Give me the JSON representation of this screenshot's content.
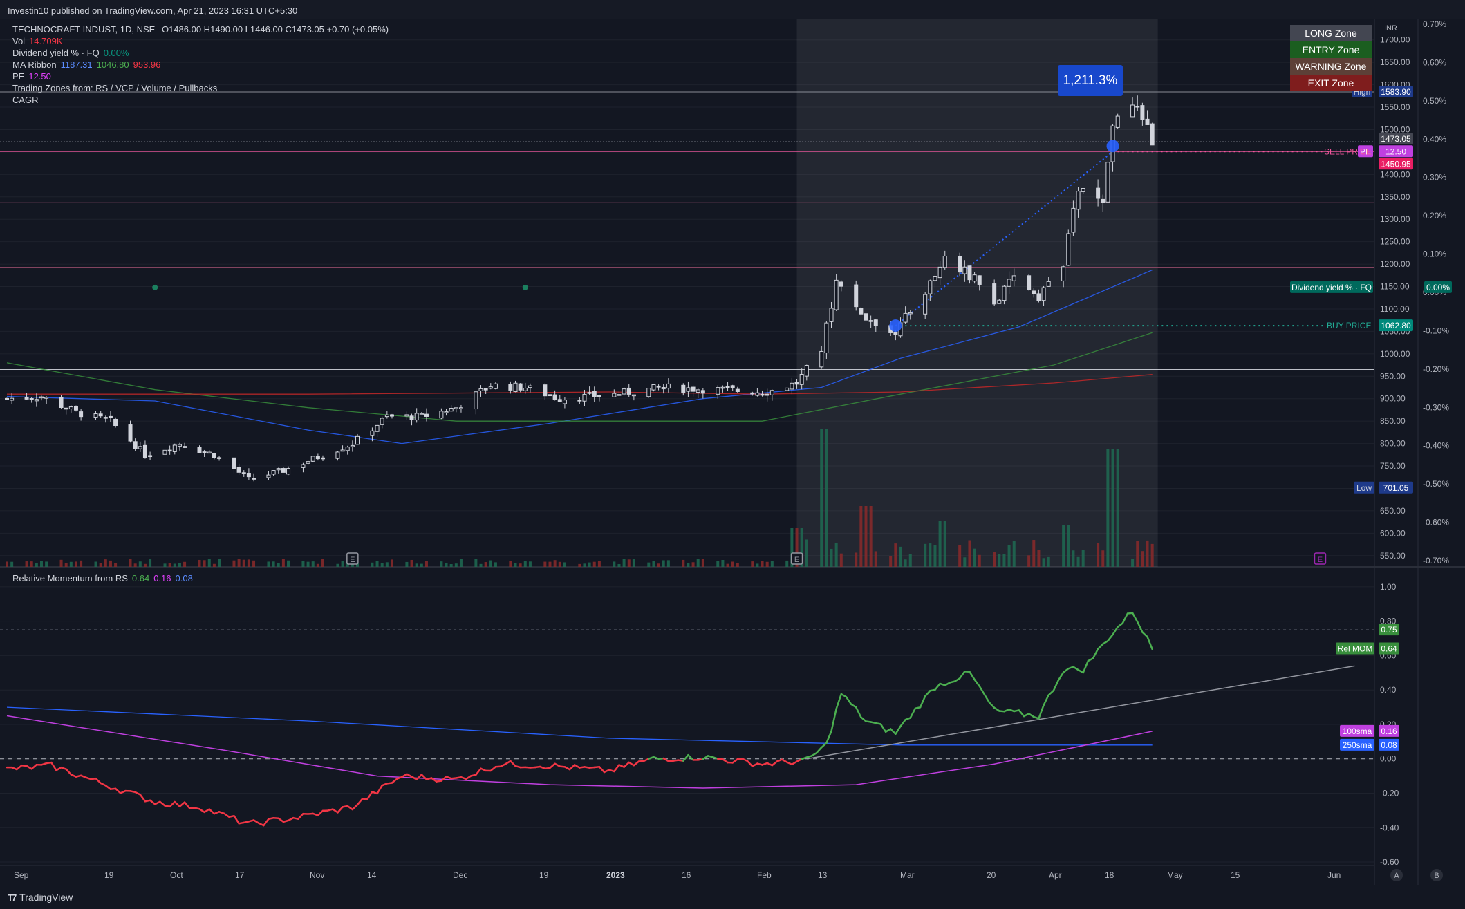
{
  "header": {
    "published": "Investin10 published on TradingView.com, Apr 21, 2023 16:31 UTC+5:30"
  },
  "footer": {
    "brand": "TradingView",
    "brand_icon": "tradingview-logo-icon"
  },
  "legend": {
    "title": "TECHNOCRAFT INDUST, 1D, NSE",
    "ohlc": "O1486.00  H1490.00  L1446.00  C1473.05  +0.70 (+0.05%)",
    "vol_label": "Vol",
    "vol_value": "14.709K",
    "div_label": "Dividend yield % · FQ",
    "div_value": "0.00%",
    "ma_label": "MA Ribbon",
    "ma1": "1187.31",
    "ma2": "1046.80",
    "ma3": "953.96",
    "pe_label": "PE",
    "pe_value": "12.50",
    "zones_label": "Trading Zones from: RS / VCP / Volume / Pullbacks",
    "cagr_label": "CAGR"
  },
  "zones": [
    {
      "label": "LONG Zone",
      "color": "#434651"
    },
    {
      "label": "ENTRY Zone",
      "color": "#1b5e20"
    },
    {
      "label": "WARNING Zone",
      "color": "#5d4037"
    },
    {
      "label": "EXIT Zone",
      "color": "#7f1d1d"
    }
  ],
  "gain_label": "1,211.3%",
  "price_axis": {
    "unit": "INR",
    "ticks": [
      "1700.00",
      "1650.00",
      "1600.00",
      "1550.00",
      "1500.00",
      "1450.00",
      "1400.00",
      "1350.00",
      "1300.00",
      "1250.00",
      "1200.00",
      "1150.00",
      "1100.00",
      "1050.00",
      "1000.00",
      "950.00",
      "900.00",
      "850.00",
      "800.00",
      "750.00",
      "700.00",
      "650.00",
      "600.00",
      "550.00"
    ],
    "tick_values": [
      1700,
      1650,
      1600,
      1550,
      1500,
      1450,
      1400,
      1350,
      1300,
      1250,
      1200,
      1150,
      1100,
      1050,
      1000,
      950,
      900,
      850,
      800,
      750,
      700,
      650,
      600,
      550
    ]
  },
  "pct_axis": {
    "ticks": [
      "0.70%",
      "0.60%",
      "0.50%",
      "0.40%",
      "0.30%",
      "0.20%",
      "0.10%",
      "0.00%",
      "-0.10%",
      "-0.20%",
      "-0.30%",
      "-0.40%",
      "-0.50%",
      "-0.60%",
      "-0.70%"
    ],
    "tick_values": [
      0.7,
      0.6,
      0.5,
      0.4,
      0.3,
      0.2,
      0.1,
      0,
      -0.1,
      -0.2,
      -0.3,
      -0.4,
      -0.5,
      -0.6,
      -0.7
    ]
  },
  "mom_axis": {
    "ticks": [
      "1.00",
      "0.80",
      "0.60",
      "0.40",
      "0.20",
      "0.00",
      "-0.20",
      "-0.40",
      "-0.60"
    ],
    "tick_values": [
      1.0,
      0.8,
      0.6,
      0.4,
      0.2,
      0,
      -0.2,
      -0.4,
      -0.6
    ]
  },
  "time_axis": {
    "labels": [
      "Sep",
      "19",
      "Oct",
      "17",
      "Nov",
      "14",
      "Dec",
      "19",
      "2023",
      "16",
      "Feb",
      "13",
      "Mar",
      "20",
      "Apr",
      "18",
      "May",
      "15",
      "Jun"
    ],
    "bold": [
      false,
      false,
      false,
      false,
      false,
      false,
      false,
      false,
      true,
      false,
      false,
      false,
      false,
      false,
      false,
      false,
      false,
      false,
      false
    ]
  },
  "bottom_buttons": [
    "A",
    "B"
  ],
  "price_labels": {
    "high_label": "High",
    "high_value": "1583.90",
    "last": "1473.05",
    "pe_tag": "PE",
    "pe_value": "12.50",
    "sell_label": "SELL PRICE",
    "sell_value": "1450.95",
    "buy_label": "BUY PRICE",
    "buy_value": "1062.80",
    "low_label": "Low",
    "low_value": "701.05",
    "div_label": "Dividend yield % · FQ",
    "div_value": "0.00%"
  },
  "momentum": {
    "title": "Relative Momentum from RS",
    "v1": "0.64",
    "v2": "0.16",
    "v3": "0.08",
    "relmom_label": "Rel MOM",
    "relmom_value": "0.64",
    "level_value": "0.75",
    "sma100_label": "100sma",
    "sma100_value": "0.16",
    "sma250_label": "250sma",
    "sma250_value": "0.08"
  },
  "chart_data": {
    "type": "line",
    "description_series": "Approximate daily close, Sep 2022 – Apr 2023",
    "x_range": [
      "2022-09-01",
      "2023-06-05"
    ],
    "price_ylim": [
      525,
      1735
    ],
    "price_close_keyframes": [
      {
        "d": "2022-09-01",
        "v": 900
      },
      {
        "d": "2022-09-08",
        "v": 905
      },
      {
        "d": "2022-09-15",
        "v": 870
      },
      {
        "d": "2022-09-22",
        "v": 850
      },
      {
        "d": "2022-09-29",
        "v": 775
      },
      {
        "d": "2022-10-06",
        "v": 800
      },
      {
        "d": "2022-10-13",
        "v": 775
      },
      {
        "d": "2022-10-20",
        "v": 720
      },
      {
        "d": "2022-10-27",
        "v": 740
      },
      {
        "d": "2022-11-03",
        "v": 770
      },
      {
        "d": "2022-11-10",
        "v": 800
      },
      {
        "d": "2022-11-17",
        "v": 860
      },
      {
        "d": "2022-11-24",
        "v": 860
      },
      {
        "d": "2022-12-01",
        "v": 880
      },
      {
        "d": "2022-12-08",
        "v": 930
      },
      {
        "d": "2022-12-15",
        "v": 925
      },
      {
        "d": "2022-12-22",
        "v": 900
      },
      {
        "d": "2023-01-02",
        "v": 910
      },
      {
        "d": "2023-01-12",
        "v": 925
      },
      {
        "d": "2023-01-23",
        "v": 920
      },
      {
        "d": "2023-02-02",
        "v": 915
      },
      {
        "d": "2023-02-08",
        "v": 935
      },
      {
        "d": "2023-02-13",
        "v": 1010
      },
      {
        "d": "2023-02-16",
        "v": 1160
      },
      {
        "d": "2023-02-22",
        "v": 1080
      },
      {
        "d": "2023-02-28",
        "v": 1050
      },
      {
        "d": "2023-03-06",
        "v": 1140
      },
      {
        "d": "2023-03-10",
        "v": 1210
      },
      {
        "d": "2023-03-16",
        "v": 1170
      },
      {
        "d": "2023-03-20",
        "v": 1110
      },
      {
        "d": "2023-03-24",
        "v": 1170
      },
      {
        "d": "2023-03-29",
        "v": 1130
      },
      {
        "d": "2023-04-03",
        "v": 1200
      },
      {
        "d": "2023-04-06",
        "v": 1370
      },
      {
        "d": "2023-04-11",
        "v": 1330
      },
      {
        "d": "2023-04-13",
        "v": 1500
      },
      {
        "d": "2023-04-17",
        "v": 1570
      },
      {
        "d": "2023-04-21",
        "v": 1473
      }
    ],
    "ma_ribbon": [
      {
        "name": "MA Ribbon 1187.31",
        "color": "#2962ff",
        "pts": [
          {
            "d": "2022-09-01",
            "v": 905
          },
          {
            "d": "2022-10-01",
            "v": 895
          },
          {
            "d": "2022-11-01",
            "v": 830
          },
          {
            "d": "2022-11-20",
            "v": 800
          },
          {
            "d": "2022-12-20",
            "v": 845
          },
          {
            "d": "2023-01-20",
            "v": 900
          },
          {
            "d": "2023-02-13",
            "v": 925
          },
          {
            "d": "2023-03-01",
            "v": 990
          },
          {
            "d": "2023-03-25",
            "v": 1060
          },
          {
            "d": "2023-04-21",
            "v": 1187
          }
        ]
      },
      {
        "name": "MA Ribbon 1046.80",
        "color": "#388e3c",
        "pts": [
          {
            "d": "2022-09-01",
            "v": 980
          },
          {
            "d": "2022-10-01",
            "v": 920
          },
          {
            "d": "2022-11-01",
            "v": 880
          },
          {
            "d": "2022-12-01",
            "v": 850
          },
          {
            "d": "2023-01-01",
            "v": 850
          },
          {
            "d": "2023-02-01",
            "v": 850
          },
          {
            "d": "2023-03-01",
            "v": 910
          },
          {
            "d": "2023-04-01",
            "v": 975
          },
          {
            "d": "2023-04-21",
            "v": 1047
          }
        ]
      },
      {
        "name": "MA Ribbon 953.96",
        "color": "#c62828",
        "pts": [
          {
            "d": "2022-09-01",
            "v": 910
          },
          {
            "d": "2022-11-01",
            "v": 910
          },
          {
            "d": "2023-01-01",
            "v": 915
          },
          {
            "d": "2023-02-01",
            "v": 910
          },
          {
            "d": "2023-03-01",
            "v": 915
          },
          {
            "d": "2023-04-01",
            "v": 935
          },
          {
            "d": "2023-04-21",
            "v": 954
          }
        ]
      }
    ],
    "price_levels": [
      1583.9,
      1473.05,
      1450.95,
      1337,
      1193,
      965,
      1062.8
    ],
    "buy": {
      "d": "2023-02-28",
      "v": 1062.8
    },
    "sell": {
      "d": "2023-04-13",
      "v": 1450.95
    },
    "highlight_range": [
      "2023-02-08",
      "2023-04-21"
    ],
    "dividend_dots": [
      {
        "d": "2022-10-01",
        "v": 1148
      },
      {
        "d": "2022-12-15",
        "v": 1148
      }
    ],
    "earnings_markers": [
      "2022-11-10",
      "2023-02-08",
      "2023-05-25"
    ],
    "volume_spikes": [
      {
        "d": "2023-02-08",
        "v": 0.28
      },
      {
        "d": "2023-02-13",
        "v": 1.0
      },
      {
        "d": "2023-02-22",
        "v": 0.44
      },
      {
        "d": "2023-03-10",
        "v": 0.33
      },
      {
        "d": "2023-04-03",
        "v": 0.3
      },
      {
        "d": "2023-04-13",
        "v": 0.85
      }
    ],
    "momentum_ylim": [
      -0.62,
      1.08
    ],
    "rel_mom": [
      {
        "d": "2022-09-01",
        "v": -0.06
      },
      {
        "d": "2022-09-10",
        "v": -0.04
      },
      {
        "d": "2022-09-20",
        "v": -0.14
      },
      {
        "d": "2022-10-01",
        "v": -0.25
      },
      {
        "d": "2022-10-10",
        "v": -0.28
      },
      {
        "d": "2022-10-20",
        "v": -0.38
      },
      {
        "d": "2022-10-30",
        "v": -0.34
      },
      {
        "d": "2022-11-10",
        "v": -0.28
      },
      {
        "d": "2022-11-20",
        "v": -0.1
      },
      {
        "d": "2022-12-01",
        "v": -0.12
      },
      {
        "d": "2022-12-10",
        "v": -0.03
      },
      {
        "d": "2022-12-20",
        "v": -0.04
      },
      {
        "d": "2023-01-01",
        "v": -0.07
      },
      {
        "d": "2023-01-10",
        "v": 0
      },
      {
        "d": "2023-01-20",
        "v": 0.01
      },
      {
        "d": "2023-02-01",
        "v": -0.03
      },
      {
        "d": "2023-02-10",
        "v": -0.01
      },
      {
        "d": "2023-02-14",
        "v": 0.08
      },
      {
        "d": "2023-02-17",
        "v": 0.38
      },
      {
        "d": "2023-02-22",
        "v": 0.22
      },
      {
        "d": "2023-02-28",
        "v": 0.15
      },
      {
        "d": "2023-03-08",
        "v": 0.42
      },
      {
        "d": "2023-03-15",
        "v": 0.5
      },
      {
        "d": "2023-03-20",
        "v": 0.28
      },
      {
        "d": "2023-03-29",
        "v": 0.25
      },
      {
        "d": "2023-04-03",
        "v": 0.52
      },
      {
        "d": "2023-04-07",
        "v": 0.52
      },
      {
        "d": "2023-04-12",
        "v": 0.7
      },
      {
        "d": "2023-04-17",
        "v": 0.86
      },
      {
        "d": "2023-04-21",
        "v": 0.64
      }
    ],
    "sma100": [
      {
        "d": "2022-09-01",
        "v": 0.25
      },
      {
        "d": "2022-10-15",
        "v": 0.05
      },
      {
        "d": "2022-11-15",
        "v": -0.1
      },
      {
        "d": "2022-12-20",
        "v": -0.15
      },
      {
        "d": "2023-01-20",
        "v": -0.17
      },
      {
        "d": "2023-02-20",
        "v": -0.15
      },
      {
        "d": "2023-03-20",
        "v": -0.03
      },
      {
        "d": "2023-04-21",
        "v": 0.16
      }
    ],
    "sma250": [
      {
        "d": "2022-09-01",
        "v": 0.3
      },
      {
        "d": "2022-11-01",
        "v": 0.22
      },
      {
        "d": "2023-01-01",
        "v": 0.12
      },
      {
        "d": "2023-03-01",
        "v": 0.08
      },
      {
        "d": "2023-04-21",
        "v": 0.08
      }
    ],
    "trendline": [
      {
        "d": "2023-02-10",
        "v": 0
      },
      {
        "d": "2023-06-01",
        "v": 0.54
      }
    ],
    "level": 0.75
  }
}
